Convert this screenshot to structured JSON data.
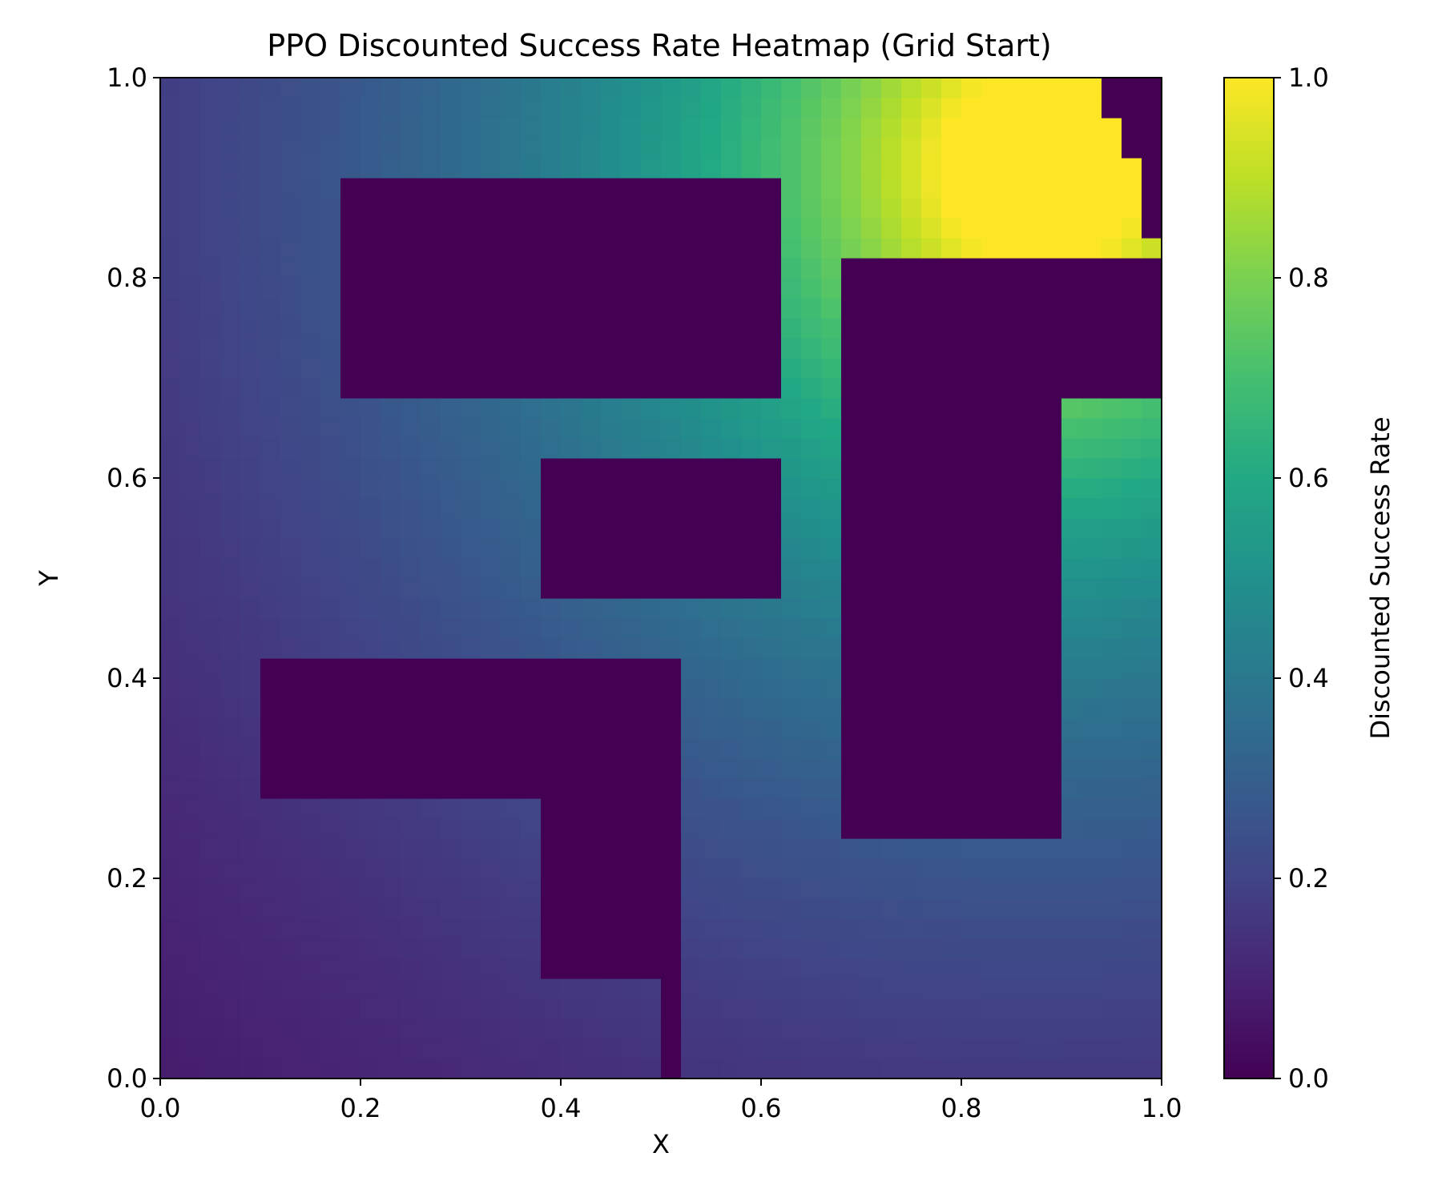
{
  "chart_data": {
    "type": "heatmap",
    "title": "PPO Discounted Success Rate Heatmap (Grid Start)",
    "xlabel": "X",
    "ylabel": "Y",
    "xlim": [
      0,
      1
    ],
    "ylim": [
      0,
      1
    ],
    "x_ticks": [
      "0.0",
      "0.2",
      "0.4",
      "0.6",
      "0.8",
      "1.0"
    ],
    "y_ticks": [
      "0.0",
      "0.2",
      "0.4",
      "0.6",
      "0.8",
      "1.0"
    ],
    "colorbar": {
      "label": "Discounted Success Rate",
      "range": [
        0,
        1
      ],
      "ticks": [
        "0.0",
        "0.2",
        "0.4",
        "0.6",
        "0.8",
        "1.0"
      ],
      "colormap": "viridis"
    },
    "grid_resolution": 50,
    "goal": {
      "x": 0.88,
      "y": 0.91,
      "radius": 0.1
    },
    "obstacles": [
      {
        "x0": 0.18,
        "x1": 0.62,
        "y0": 0.68,
        "y1": 0.9
      },
      {
        "x0": 0.38,
        "x1": 0.62,
        "y0": 0.48,
        "y1": 0.62
      },
      {
        "x0": 0.1,
        "x1": 0.52,
        "y0": 0.28,
        "y1": 0.42
      },
      {
        "x0": 0.38,
        "x1": 0.52,
        "y0": 0.1,
        "y1": 0.28
      },
      {
        "x0": 0.5,
        "x1": 0.52,
        "y0": 0.0,
        "y1": 0.1
      },
      {
        "x0": 0.68,
        "x1": 0.9,
        "y0": 0.24,
        "y1": 0.82
      },
      {
        "x0": 0.9,
        "x1": 1.0,
        "y0": 0.68,
        "y1": 0.82
      },
      {
        "x0": 0.94,
        "x1": 1.0,
        "y0": 0.96,
        "y1": 1.0
      },
      {
        "x0": 0.96,
        "x1": 1.0,
        "y0": 0.92,
        "y1": 0.96
      },
      {
        "x0": 0.98,
        "x1": 1.0,
        "y0": 0.84,
        "y1": 0.92
      }
    ],
    "value_model": {
      "peak_value": 1.0,
      "decay_per_distance": 2.2,
      "minimum_value": 0.05
    }
  }
}
